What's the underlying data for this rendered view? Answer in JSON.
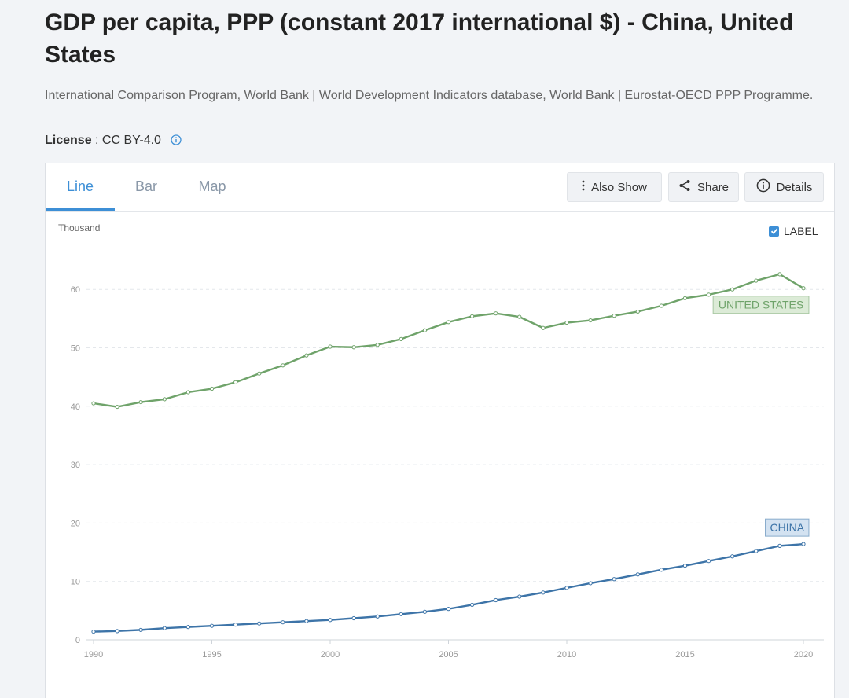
{
  "header": {
    "title": "GDP per capita, PPP (constant 2017 international $) - China, United States",
    "sources": "International Comparison Program, World Bank | World Development Indicators database, World Bank | Eurostat-OECD PPP Programme.",
    "license_label": "License",
    "license_value": " : CC BY-4.0"
  },
  "tabs": [
    {
      "label": "Line",
      "active": true
    },
    {
      "label": "Bar",
      "active": false
    },
    {
      "label": "Map",
      "active": false
    }
  ],
  "toolbar": {
    "also_show": "Also Show",
    "share": "Share",
    "details": "Details"
  },
  "label_toggle": {
    "text": "LABEL",
    "checked": true
  },
  "chart_data": {
    "type": "line",
    "ylabel": "Thousand",
    "ylim": [
      0,
      65
    ],
    "yticks": [
      0,
      10,
      20,
      30,
      40,
      50,
      60
    ],
    "xlim": [
      1990,
      2020
    ],
    "xticks": [
      1990,
      1995,
      2000,
      2005,
      2010,
      2015,
      2020
    ],
    "grid": true,
    "x": [
      1990,
      1991,
      1992,
      1993,
      1994,
      1995,
      1996,
      1997,
      1998,
      1999,
      2000,
      2001,
      2002,
      2003,
      2004,
      2005,
      2006,
      2007,
      2008,
      2009,
      2010,
      2011,
      2012,
      2013,
      2014,
      2015,
      2016,
      2017,
      2018,
      2019,
      2020
    ],
    "series": [
      {
        "name": "UNITED STATES",
        "color": "#6fa36a",
        "label_bg": "#dcebd7",
        "values": [
          40.5,
          39.9,
          40.7,
          41.2,
          42.4,
          43.0,
          44.1,
          45.6,
          47.0,
          48.7,
          50.2,
          50.1,
          50.5,
          51.5,
          53.0,
          54.4,
          55.4,
          55.9,
          55.3,
          53.4,
          54.3,
          54.7,
          55.5,
          56.2,
          57.2,
          58.5,
          59.1,
          60.0,
          61.5,
          62.6,
          60.2
        ]
      },
      {
        "name": "CHINA",
        "color": "#3d74a8",
        "label_bg": "#d3e2f1",
        "values": [
          1.4,
          1.5,
          1.7,
          2.0,
          2.2,
          2.4,
          2.6,
          2.8,
          3.0,
          3.2,
          3.4,
          3.7,
          4.0,
          4.4,
          4.8,
          5.3,
          6.0,
          6.8,
          7.4,
          8.1,
          8.9,
          9.7,
          10.4,
          11.2,
          12.0,
          12.7,
          13.5,
          14.3,
          15.2,
          16.1,
          16.4
        ]
      }
    ]
  }
}
